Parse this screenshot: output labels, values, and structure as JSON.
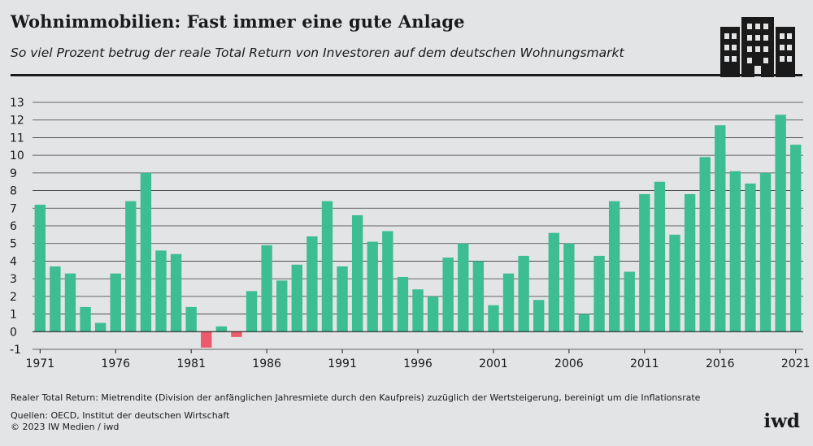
{
  "header": {
    "title": "Wohnimmobilien: Fast immer eine gute Anlage",
    "subtitle": "So viel Prozent betrug der reale Total Return von Investoren auf dem deutschen Wohnungsmarkt",
    "logo_icon": "building-icon"
  },
  "footer": {
    "footnote": "Realer Total Return: Mietrendite (Division der anfänglichen Jahresmiete durch den Kaufpreis) zuzüglich der Wertsteigerung, bereinigt um die Inflationsrate",
    "sources": "Quellen: OECD, Institut der deutschen Wirtschaft",
    "copyright": "© 2023 IW Medien / iwd",
    "brand": "iwd"
  },
  "chart_data": {
    "type": "bar",
    "title": "",
    "xlabel": "",
    "ylabel": "",
    "ylim": [
      -1,
      13
    ],
    "yticks": [
      -1,
      0,
      1,
      2,
      3,
      4,
      5,
      6,
      7,
      8,
      9,
      10,
      11,
      12,
      13
    ],
    "xtick_labels": [
      "1971",
      "1976",
      "1981",
      "1986",
      "1991",
      "1996",
      "2001",
      "2006",
      "2011",
      "2016",
      "2021"
    ],
    "grid": true,
    "positive_color": "#3dbd92",
    "negative_color": "#ec5a6b",
    "categories": [
      1971,
      1972,
      1973,
      1974,
      1975,
      1976,
      1977,
      1978,
      1979,
      1980,
      1981,
      1982,
      1983,
      1984,
      1985,
      1986,
      1987,
      1988,
      1989,
      1990,
      1991,
      1992,
      1993,
      1994,
      1995,
      1996,
      1997,
      1998,
      1999,
      2000,
      2001,
      2002,
      2003,
      2004,
      2005,
      2006,
      2007,
      2008,
      2009,
      2010,
      2011,
      2012,
      2013,
      2014,
      2015,
      2016,
      2017,
      2018,
      2019,
      2020,
      2021
    ],
    "values": [
      7.2,
      3.7,
      3.3,
      1.4,
      0.5,
      3.3,
      7.4,
      9.0,
      4.6,
      4.4,
      1.4,
      -0.9,
      0.3,
      -0.3,
      2.3,
      4.9,
      2.9,
      3.8,
      5.4,
      7.4,
      3.7,
      6.6,
      5.1,
      5.7,
      3.1,
      2.4,
      2.0,
      4.2,
      5.0,
      4.0,
      1.5,
      3.3,
      4.3,
      1.8,
      5.6,
      5.0,
      1.0,
      4.3,
      7.4,
      3.4,
      7.8,
      8.5,
      5.5,
      7.8,
      9.9,
      11.7,
      9.1,
      8.4,
      9.0,
      12.3,
      10.6
    ]
  }
}
